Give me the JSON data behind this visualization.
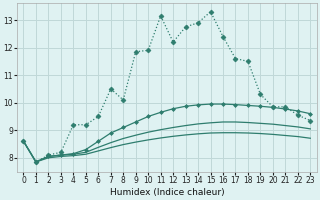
{
  "xlabel": "Humidex (Indice chaleur)",
  "x": [
    0,
    1,
    2,
    3,
    4,
    5,
    6,
    7,
    8,
    9,
    10,
    11,
    12,
    13,
    14,
    15,
    16,
    17,
    18,
    19,
    20,
    21,
    22,
    23
  ],
  "line1": [
    8.6,
    7.85,
    8.1,
    8.2,
    9.2,
    9.2,
    9.5,
    10.5,
    10.1,
    11.85,
    11.9,
    13.15,
    12.2,
    12.75,
    12.9,
    13.3,
    12.4,
    11.6,
    11.5,
    10.3,
    9.85,
    9.85,
    9.55,
    9.35
  ],
  "line2": [
    8.6,
    7.85,
    8.05,
    8.1,
    8.15,
    8.3,
    8.6,
    8.9,
    9.1,
    9.3,
    9.5,
    9.65,
    9.78,
    9.87,
    9.92,
    9.95,
    9.95,
    9.93,
    9.9,
    9.87,
    9.83,
    9.77,
    9.7,
    9.6
  ],
  "line3": [
    8.6,
    7.85,
    8.05,
    8.1,
    8.13,
    8.2,
    8.38,
    8.55,
    8.7,
    8.82,
    8.93,
    9.02,
    9.1,
    9.17,
    9.23,
    9.27,
    9.3,
    9.3,
    9.28,
    9.25,
    9.22,
    9.17,
    9.12,
    9.05
  ],
  "line4": [
    8.6,
    7.85,
    8.0,
    8.05,
    8.08,
    8.13,
    8.25,
    8.37,
    8.48,
    8.57,
    8.65,
    8.72,
    8.78,
    8.83,
    8.87,
    8.9,
    8.91,
    8.91,
    8.9,
    8.88,
    8.85,
    8.81,
    8.77,
    8.71
  ],
  "color": "#2e7d6e",
  "background": "#dff2f2",
  "grid_color": "#c0d8d8",
  "ylim": [
    7.5,
    13.6
  ],
  "xlim": [
    -0.5,
    23.5
  ],
  "yticks": [
    8,
    9,
    10,
    11,
    12,
    13
  ],
  "xticks": [
    0,
    1,
    2,
    3,
    4,
    5,
    6,
    7,
    8,
    9,
    10,
    11,
    12,
    13,
    14,
    15,
    16,
    17,
    18,
    19,
    20,
    21,
    22,
    23
  ]
}
